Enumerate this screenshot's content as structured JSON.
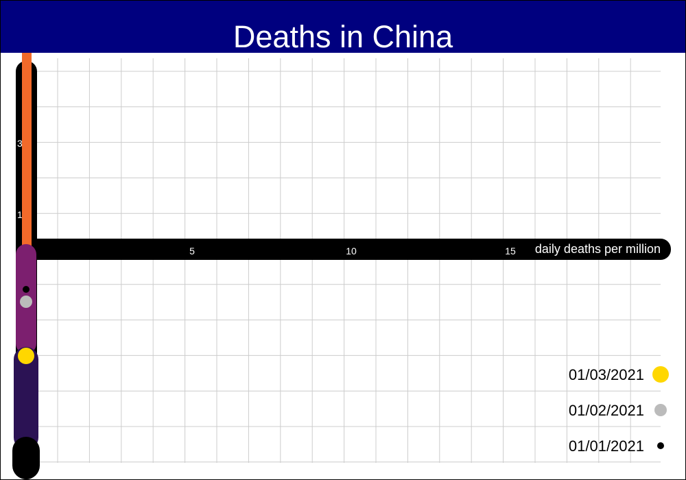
{
  "chart_data": {
    "type": "line",
    "title": "Deaths in China",
    "xlabel": "daily deaths per million",
    "xlim": [
      -1,
      19.7
    ],
    "x_ticks": [
      5,
      10,
      15
    ],
    "y_ticks": [
      3,
      1
    ],
    "grid": true,
    "legend_position": "bottom-right",
    "series": [
      {
        "dates": [
          "01/01/2021",
          "01/02/2021",
          "01/03/2021"
        ],
        "points": [
          {
            "date": "01/01/2021",
            "x": 0,
            "color": "#000000"
          },
          {
            "date": "01/02/2021",
            "x": 0,
            "color": "#bbbbbb"
          },
          {
            "date": "01/03/2021",
            "x": 0,
            "color": "#ffd700"
          }
        ]
      }
    ],
    "legend": [
      {
        "label": "01/03/2021",
        "color": "#ffd700",
        "size": "large"
      },
      {
        "label": "01/02/2021",
        "color": "#bbbbbb",
        "size": "medium"
      },
      {
        "label": "01/01/2021",
        "color": "#000000",
        "size": "small"
      }
    ]
  },
  "colors": {
    "title_bar": "#00007f",
    "axis_bar": "#000000",
    "grid": "#cccccc",
    "trail_top": "#f26a2a",
    "trail_mid": "#7c1f6f",
    "trail_low": "#2b1254",
    "trail_bottom": "#000000"
  }
}
